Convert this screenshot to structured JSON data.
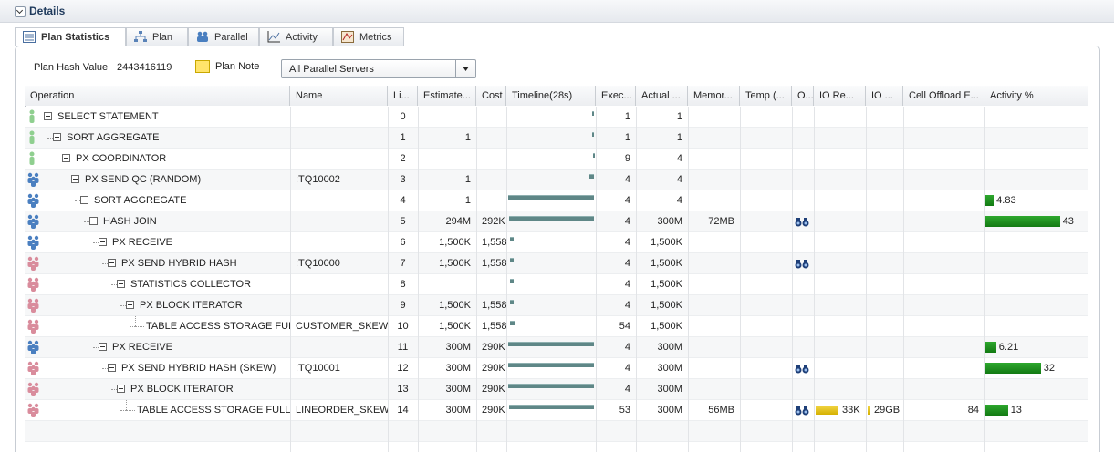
{
  "header": {
    "title": "Details"
  },
  "tabs": [
    {
      "label": "Plan Statistics",
      "selected": true
    },
    {
      "label": "Plan"
    },
    {
      "label": "Parallel"
    },
    {
      "label": "Activity"
    },
    {
      "label": "Metrics"
    }
  ],
  "toolbar": {
    "hash_label": "Plan Hash Value",
    "hash_value": "2443416119",
    "plan_note": "Plan Note",
    "select": "All Parallel Servers"
  },
  "table": {
    "columns": [
      "Operation",
      "Name",
      "Li...",
      "Estimate...",
      "Cost",
      "Timeline(28s)",
      "Exec...",
      "Actual ...",
      "Memor...",
      "Temp (...",
      "O...",
      "IO Re...",
      "IO ...",
      "Cell Offload E...",
      "Activity %"
    ],
    "timeline_xlim": [
      0,
      28
    ],
    "timeline_color": "#5f8787",
    "activity_color": "#2ea82e",
    "io_color": "#d4b000",
    "rows": [
      {
        "op": "SELECT STATEMENT",
        "level": 0,
        "icon_color": "#8fcf8f",
        "line": 0,
        "timeline": [
          27.3,
          0.4
        ],
        "exec": 1,
        "actual": "1"
      },
      {
        "op": "SORT AGGREGATE",
        "level": 1,
        "icon_color": "#8fcf8f",
        "line": 1,
        "est": "1",
        "timeline": [
          27.5,
          0.3
        ],
        "exec": 1,
        "actual": "1"
      },
      {
        "op": "PX COORDINATOR",
        "level": 2,
        "icon_color": "#8fcf8f",
        "line": 2,
        "timeline": [
          27.6,
          0.3
        ],
        "exec": 9,
        "actual": "4"
      },
      {
        "op": "PX SEND QC (RANDOM)",
        "level": 3,
        "icon_color": "#4a7fc0",
        "name": ":TQ10002",
        "line": 3,
        "est": "1",
        "timeline": [
          26.6,
          1.4
        ],
        "exec": 4,
        "actual": "4"
      },
      {
        "op": "SORT AGGREGATE",
        "level": 4,
        "icon_color": "#4a7fc0",
        "line": 4,
        "est": "1",
        "timeline": [
          0,
          28
        ],
        "exec": 4,
        "actual": "4",
        "activity": 4.83
      },
      {
        "op": "HASH JOIN",
        "level": 5,
        "icon_color": "#4a7fc0",
        "line": 5,
        "est": "294M",
        "cost": "292K",
        "timeline": [
          0.4,
          27.6
        ],
        "exec": 4,
        "actual": "300M",
        "mem": "72MB",
        "binoculars": true,
        "activity": 43
      },
      {
        "op": "PX RECEIVE",
        "level": 6,
        "icon_color": "#4a7fc0",
        "line": 6,
        "est": "1,500K",
        "cost": "1,558",
        "timeline": [
          0.6,
          1.2
        ],
        "exec": 4,
        "actual": "1,500K"
      },
      {
        "op": "PX SEND HYBRID HASH",
        "level": 7,
        "icon_color": "#d98c9c",
        "name": ":TQ10000",
        "line": 7,
        "est": "1,500K",
        "cost": "1,558",
        "timeline": [
          0.6,
          1.2
        ],
        "exec": 4,
        "actual": "1,500K",
        "binoculars": true
      },
      {
        "op": "STATISTICS COLLECTOR",
        "level": 8,
        "icon_color": "#d98c9c",
        "line": 8,
        "timeline": [
          0.6,
          1.2
        ],
        "exec": 4,
        "actual": "1,500K"
      },
      {
        "op": "PX BLOCK ITERATOR",
        "level": 9,
        "icon_color": "#d98c9c",
        "line": 9,
        "est": "1,500K",
        "cost": "1,558",
        "timeline": [
          0.6,
          1.2
        ],
        "exec": 4,
        "actual": "1,500K"
      },
      {
        "op": "TABLE ACCESS STORAGE FULL",
        "level": 10,
        "icon_color": "#d98c9c",
        "name": "CUSTOMER_SKEW",
        "line": 10,
        "est": "1,500K",
        "cost": "1,558",
        "timeline": [
          0.6,
          1.6
        ],
        "exec": 54,
        "actual": "1,500K"
      },
      {
        "op": "PX RECEIVE",
        "level": 6,
        "icon_color": "#4a7fc0",
        "line": 11,
        "est": "300M",
        "cost": "290K",
        "timeline": [
          0,
          28
        ],
        "exec": 4,
        "actual": "300M",
        "activity": 6.21
      },
      {
        "op": "PX SEND HYBRID HASH (SKEW)",
        "level": 7,
        "icon_color": "#d98c9c",
        "name": ":TQ10001",
        "line": 12,
        "est": "300M",
        "cost": "290K",
        "timeline": [
          0,
          28
        ],
        "exec": 4,
        "actual": "300M",
        "binoculars": true,
        "activity": 32
      },
      {
        "op": "PX BLOCK ITERATOR",
        "level": 8,
        "icon_color": "#d98c9c",
        "line": 13,
        "est": "300M",
        "cost": "290K",
        "timeline": [
          0,
          28
        ],
        "exec": 4,
        "actual": "300M"
      },
      {
        "op": "TABLE ACCESS STORAGE FULL",
        "level": 9,
        "icon_color": "#d98c9c",
        "name": "LINEORDER_SKEW",
        "line": 14,
        "est": "300M",
        "cost": "290K",
        "timeline": [
          0.4,
          27.6
        ],
        "exec": 53,
        "actual": "300M",
        "mem": "56MB",
        "binoculars": true,
        "io_req": "33K",
        "io_bytes": "29GB",
        "cell": 84,
        "activity": 13
      }
    ]
  }
}
